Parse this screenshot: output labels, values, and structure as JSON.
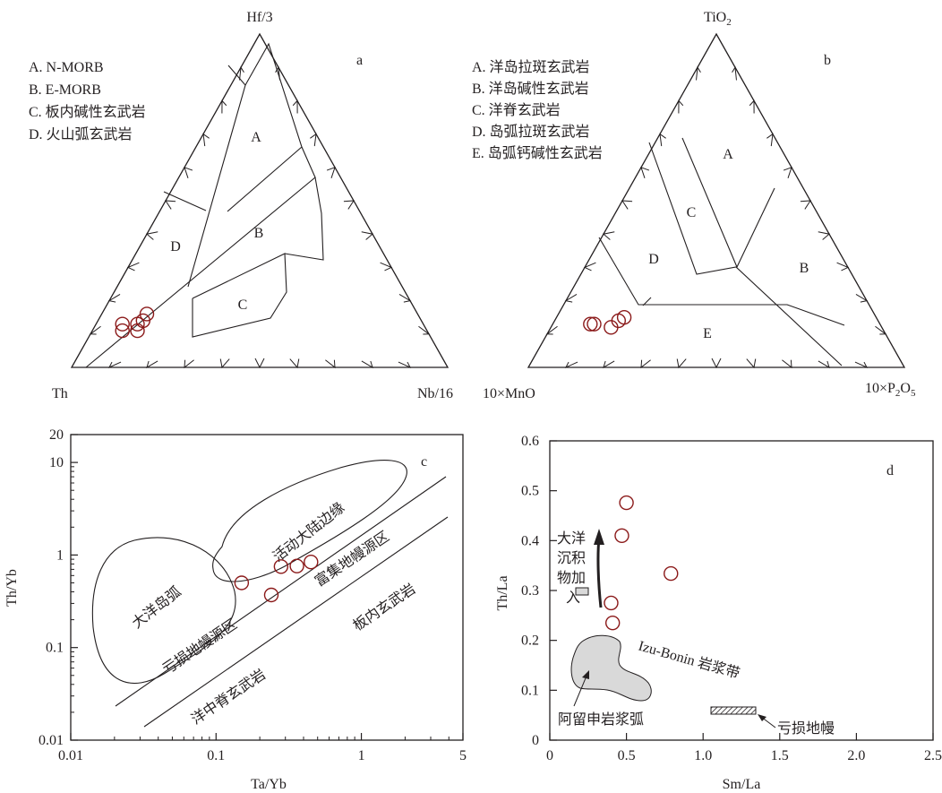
{
  "chart_data": [
    {
      "panel": "a",
      "type": "ternary",
      "apices": {
        "top": "Hf/3",
        "left": "Th",
        "right": "Nb/16"
      },
      "legend": [
        "A. N-MORB",
        "B. E-MORB",
        "C. 板内碱性玄武岩",
        "D. 火山弧玄武岩"
      ],
      "field_labels": [
        "A",
        "B",
        "C",
        "D"
      ],
      "points": [
        {
          "Hf/3": 0.16,
          "Th": 0.72,
          "Nb/16": 0.12
        },
        {
          "Hf/3": 0.14,
          "Th": 0.74,
          "Nb/16": 0.12
        },
        {
          "Hf/3": 0.13,
          "Th": 0.76,
          "Nb/16": 0.11
        },
        {
          "Hf/3": 0.11,
          "Th": 0.77,
          "Nb/16": 0.12
        },
        {
          "Hf/3": 0.13,
          "Th": 0.8,
          "Nb/16": 0.07
        },
        {
          "Hf/3": 0.11,
          "Th": 0.81,
          "Nb/16": 0.08
        }
      ]
    },
    {
      "panel": "b",
      "type": "ternary",
      "apices": {
        "top": "TiO2",
        "left": "10×MnO",
        "right": "10×P2O5"
      },
      "legend": [
        "A. 洋岛拉斑玄武岩",
        "B. 洋岛碱性玄武岩",
        "C. 洋脊玄武岩",
        "D. 岛弧拉斑玄武岩",
        "E. 岛弧钙碱性玄武岩"
      ],
      "field_labels": [
        "A",
        "B",
        "C",
        "D",
        "E"
      ],
      "points": [
        {
          "TiO2": 0.13,
          "10×MnO": 0.77,
          "10×P2O5": 0.1
        },
        {
          "TiO2": 0.13,
          "10×MnO": 0.76,
          "10×P2O5": 0.11
        },
        {
          "TiO2": 0.12,
          "10×MnO": 0.72,
          "10×P2O5": 0.16
        },
        {
          "TiO2": 0.14,
          "10×MnO": 0.69,
          "10×P2O5": 0.17
        },
        {
          "TiO2": 0.15,
          "10×MnO": 0.67,
          "10×P2O5": 0.18
        }
      ]
    },
    {
      "panel": "c",
      "type": "scatter",
      "xlabel": "Ta/Yb",
      "ylabel": "Th/Yb",
      "xscale": "log",
      "yscale": "log",
      "xlim": [
        0.01,
        5
      ],
      "ylim": [
        0.01,
        20
      ],
      "xticks": [
        "0.01",
        "0.1",
        "1",
        "5"
      ],
      "yticks": [
        "0.01",
        "0.1",
        "1",
        "10",
        "20"
      ],
      "field_labels": [
        "大洋岛弧",
        "活动大陆边缘",
        "富集地幔源区",
        "亏损地幔源区",
        "洋中脊玄武岩",
        "板内玄武岩"
      ],
      "points": [
        {
          "x": 0.15,
          "y": 0.5
        },
        {
          "x": 0.24,
          "y": 0.37
        },
        {
          "x": 0.28,
          "y": 0.75
        },
        {
          "x": 0.36,
          "y": 0.76
        },
        {
          "x": 0.45,
          "y": 0.84
        }
      ]
    },
    {
      "panel": "d",
      "type": "scatter",
      "xlabel": "Sm/La",
      "ylabel": "Th/La",
      "xlim": [
        0,
        2.5
      ],
      "ylim": [
        0,
        0.6
      ],
      "xticks": [
        "0",
        "0.5",
        "1.0",
        "1.5",
        "2.0",
        "2.5"
      ],
      "yticks": [
        "0",
        "0.1",
        "0.2",
        "0.3",
        "0.4",
        "0.5",
        "0.6"
      ],
      "annotations": [
        "大洋沉积物加入",
        "Izu-Bonin 岩浆带",
        "阿留申岩浆弧",
        "亏损地幔"
      ],
      "points": [
        {
          "x": 0.5,
          "y": 0.476
        },
        {
          "x": 0.47,
          "y": 0.41
        },
        {
          "x": 0.79,
          "y": 0.334
        },
        {
          "x": 0.4,
          "y": 0.275
        },
        {
          "x": 0.41,
          "y": 0.235
        }
      ]
    }
  ]
}
